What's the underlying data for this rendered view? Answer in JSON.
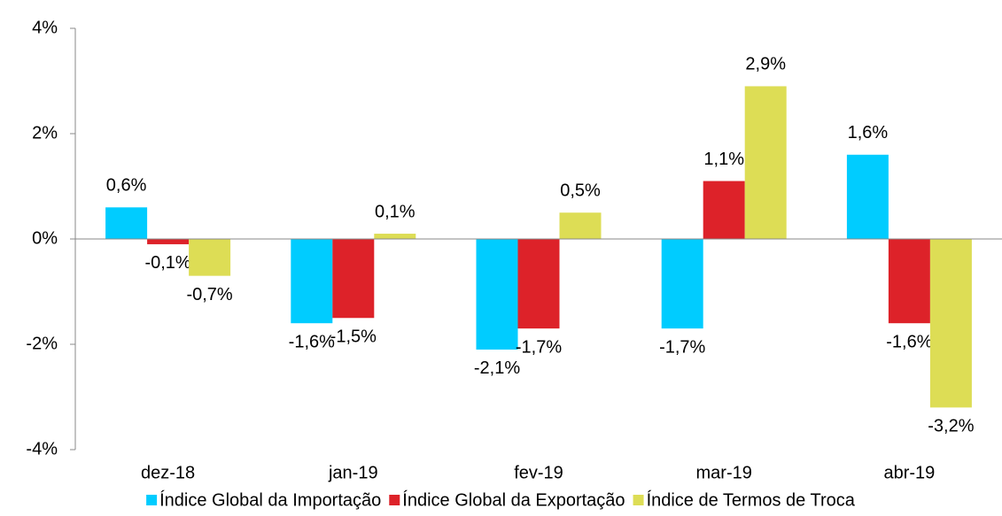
{
  "chart_data": {
    "type": "bar",
    "categories": [
      "dez-18",
      "jan-19",
      "fev-19",
      "mar-19",
      "abr-19"
    ],
    "series": [
      {
        "name": "Índice Global da Importação",
        "color": "#00ccff",
        "values": [
          0.6,
          -1.6,
          -2.1,
          -1.7,
          1.6
        ],
        "value_labels": [
          "0,6%",
          "-1,6%",
          "-2,1%",
          "-1,7%",
          "1,6%"
        ]
      },
      {
        "name": "Índice Global da Exportação",
        "color": "#dd2229",
        "values": [
          -0.1,
          -1.5,
          -1.7,
          1.1,
          -1.6
        ],
        "value_labels": [
          "-0,1%",
          "-1,5%",
          "-1,7%",
          "1,1%",
          "-1,6%"
        ]
      },
      {
        "name": "Índice de Termos de Troca",
        "color": "#dddd55",
        "values": [
          -0.7,
          0.1,
          0.5,
          2.9,
          -3.2
        ],
        "value_labels": [
          "-0,7%",
          "0,1%",
          "0,5%",
          "2,9%",
          "-3,2%"
        ]
      }
    ],
    "ylim": [
      -4,
      4
    ],
    "yticks": [
      {
        "value": -4,
        "label": "-4%"
      },
      {
        "value": -2,
        "label": "-2%"
      },
      {
        "value": 0,
        "label": "0%"
      },
      {
        "value": 2,
        "label": "2%"
      },
      {
        "value": 4,
        "label": "4%"
      }
    ],
    "grid": false,
    "legend": "bottom"
  }
}
